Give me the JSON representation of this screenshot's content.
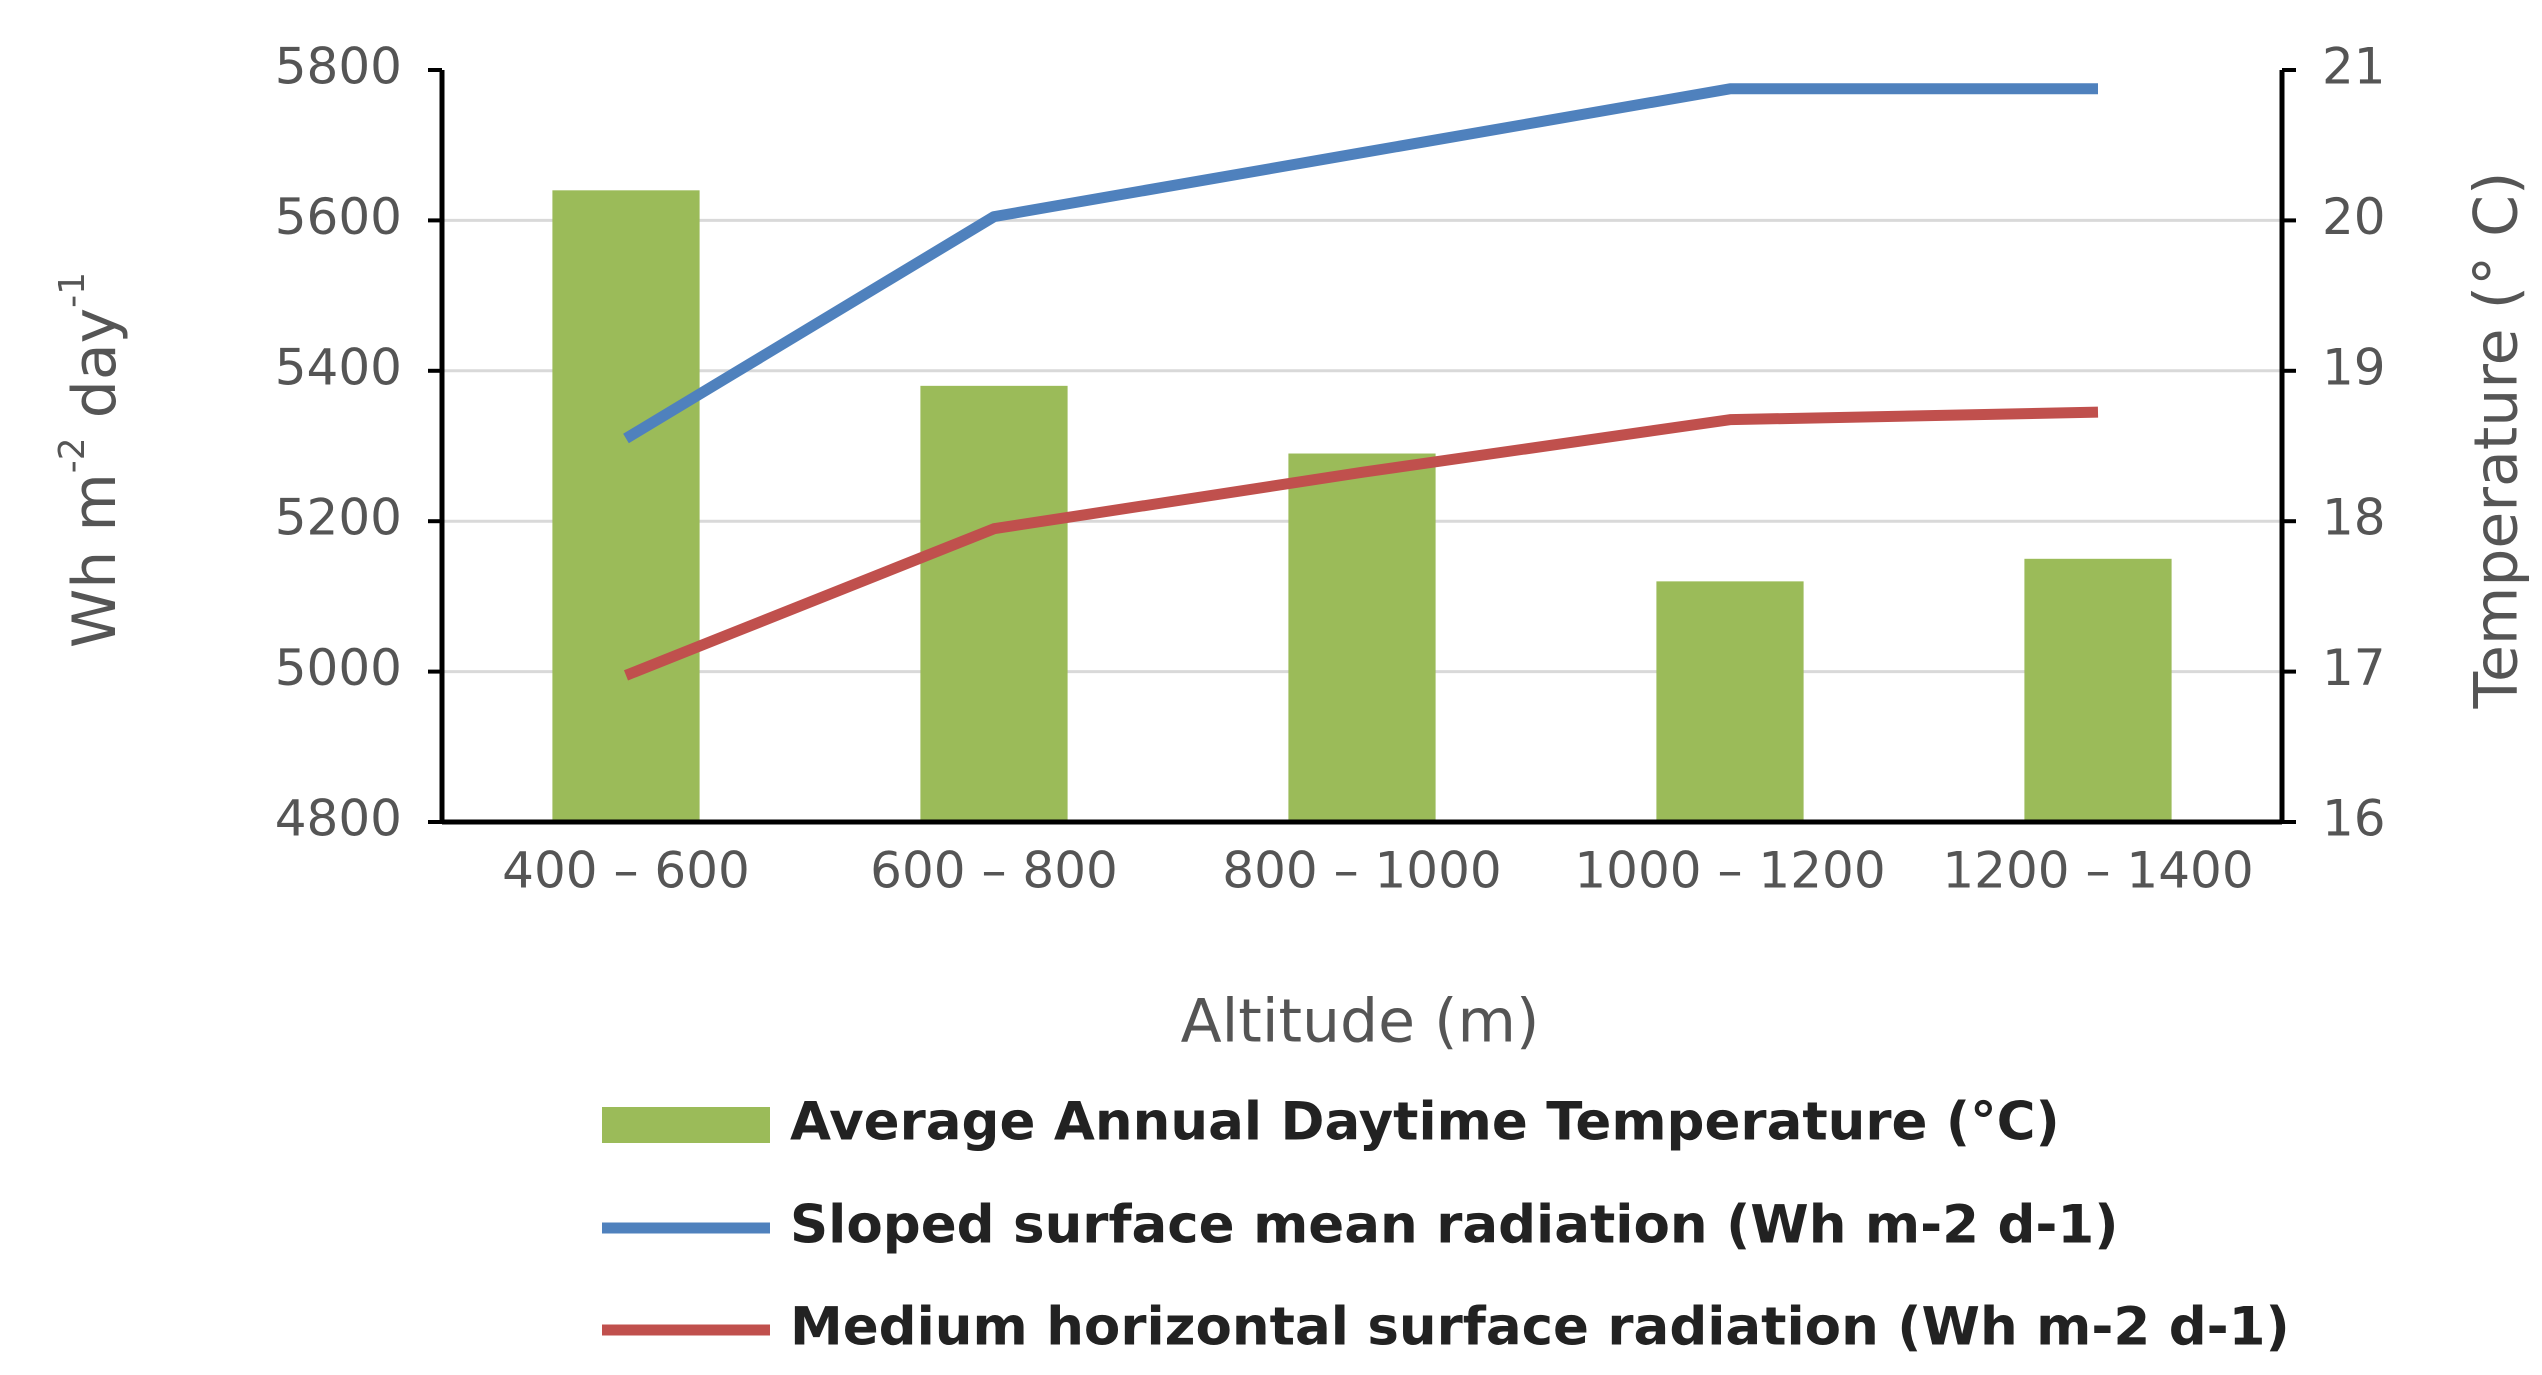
{
  "chart_data": {
    "type": "bar-line-combo",
    "categories": [
      "400 – 600",
      "600 – 800",
      "800 – 1000",
      "1000 – 1200",
      "1200 – 1400"
    ],
    "xlabel": "Altitude (m)",
    "ylabel_left": {
      "base": "Wh m",
      "sup1": "-2",
      "mid": " day",
      "sup2": "-1"
    },
    "ylabel_right": "Temperature (° C)",
    "ylim_left": [
      4800,
      5800
    ],
    "yticks_left": [
      "5800",
      "5600",
      "5400",
      "5200",
      "5000",
      "4800"
    ],
    "ylim_right": [
      16,
      21
    ],
    "yticks_right": [
      "21",
      "20",
      "19",
      "18",
      "17",
      "16"
    ],
    "grid": "horizontal",
    "legend_position": "bottom",
    "series": [
      {
        "name": "Average Annual Daytime Temperature (°C)",
        "type": "bar",
        "axis": "right",
        "color": "#9BBB59",
        "values": [
          20.2,
          18.9,
          18.45,
          17.6,
          17.75
        ]
      },
      {
        "name": "Sloped surface mean radiation (Wh m-2 d-1)",
        "type": "line",
        "axis": "left",
        "color": "#4F81BD",
        "values": [
          5310,
          5605,
          5690,
          5775,
          5775
        ]
      },
      {
        "name": "Medium horizontal surface radiation (Wh m-2 d-1)",
        "type": "line",
        "axis": "left",
        "color": "#C0504D",
        "values": [
          4995,
          5190,
          5265,
          5335,
          5345
        ]
      }
    ]
  }
}
